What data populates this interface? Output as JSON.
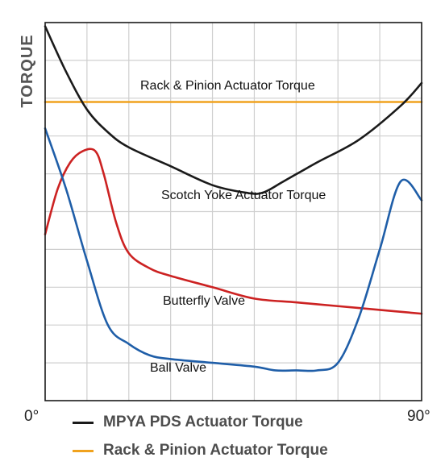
{
  "chart_data": {
    "type": "line",
    "ylabel": "TORQUE",
    "xlabel": "",
    "x_tick_labels": {
      "start": "0°",
      "end": "90°"
    },
    "xlim": [
      0,
      90
    ],
    "ylim": [
      0,
      100
    ],
    "grid": true,
    "y_scale_note": "unitless",
    "legend_position": "bottom",
    "legend": [
      {
        "label": "MPYA  PDS  Actuator Torque",
        "color": "#1a1a1a"
      },
      {
        "label": "Rack & Pinion Actuator Torque",
        "color": "#f0a21e"
      }
    ],
    "series": [
      {
        "key": "rack",
        "color": "#f0a21e",
        "x": [
          0,
          90
        ],
        "y": [
          79,
          79
        ]
      },
      {
        "key": "scotch",
        "color": "#1a1a1a",
        "x": [
          0,
          5,
          10,
          15,
          20,
          30,
          40,
          48,
          52,
          57,
          65,
          75,
          85,
          90
        ],
        "y": [
          99,
          87,
          77,
          71,
          67,
          62,
          57,
          55,
          55,
          58,
          63,
          69,
          78,
          84
        ]
      },
      {
        "key": "butterfly",
        "color": "#cc2222",
        "x": [
          0,
          3,
          6,
          9,
          12,
          14,
          17,
          20,
          25,
          30,
          40,
          50,
          60,
          70,
          80,
          90
        ],
        "y": [
          44,
          56,
          63,
          66,
          66,
          60,
          47,
          39,
          35,
          33,
          30,
          27,
          26,
          25,
          24,
          23
        ]
      },
      {
        "key": "ball",
        "color": "#1f5ea8",
        "x": [
          0,
          5,
          10,
          15,
          20,
          25,
          30,
          40,
          50,
          55,
          60,
          65,
          70,
          75,
          80,
          85,
          90
        ],
        "y": [
          72,
          56,
          37,
          20,
          15,
          12,
          11,
          10,
          9,
          8,
          8,
          8,
          10,
          22,
          40,
          58,
          53
        ]
      }
    ],
    "annotations": [
      {
        "key": "rack",
        "text": "Rack & Pinion Actuator Torque"
      },
      {
        "key": "scotch",
        "text": "Scotch Yoke Actuator Torque"
      },
      {
        "key": "butterfly",
        "text": "Butterfly Valve"
      },
      {
        "key": "ball",
        "text": "Ball Valve"
      }
    ]
  }
}
